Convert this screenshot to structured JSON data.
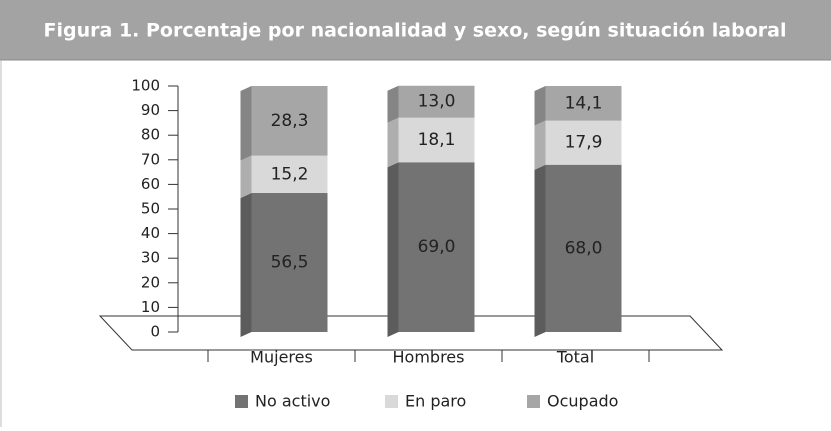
{
  "chart_data": {
    "type": "stacked-bar-3d",
    "title": "Figura 1. Porcentaje por nacionalidad y sexo, según situación laboral",
    "categories": [
      "Mujeres",
      "Hombres",
      "Total"
    ],
    "series": [
      {
        "name": "No activo",
        "color": "#737373",
        "values": [
          56.5,
          69.0,
          68.0
        ],
        "value_labels": [
          "56,5",
          "69,0",
          "68,0"
        ]
      },
      {
        "name": "En paro",
        "color": "#d9d9d9",
        "values": [
          15.2,
          18.1,
          17.9
        ],
        "value_labels": [
          "15,2",
          "18,1",
          "17,9"
        ]
      },
      {
        "name": "Ocupado",
        "color": "#a6a6a6",
        "values": [
          28.3,
          13.0,
          14.1
        ],
        "value_labels": [
          "28,3",
          "13,0",
          "14,1"
        ]
      }
    ],
    "ylim": [
      0,
      100
    ],
    "yticks": [
      0,
      10,
      20,
      30,
      40,
      50,
      60,
      70,
      80,
      90,
      100
    ],
    "legend": "bottom"
  }
}
